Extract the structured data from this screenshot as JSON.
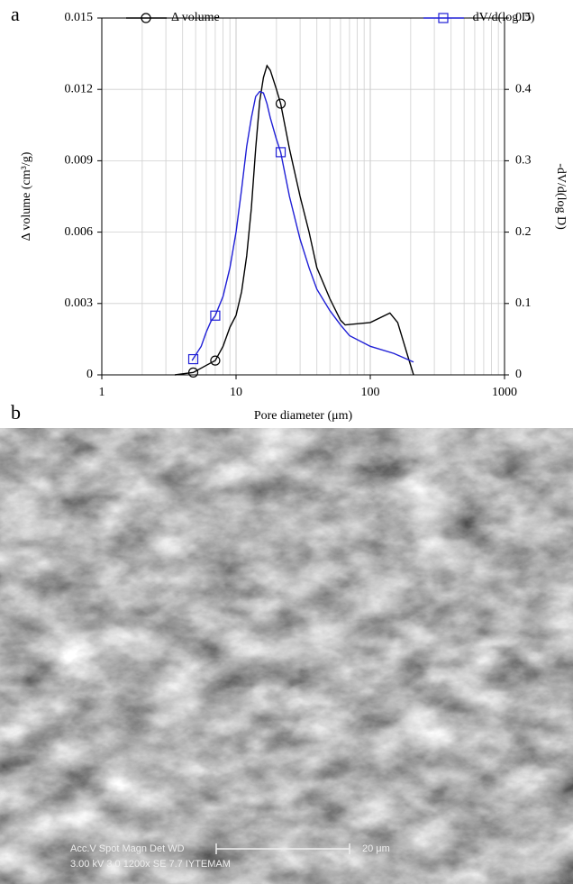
{
  "panel_labels": [
    "a",
    "b"
  ],
  "chart_data": {
    "type": "line",
    "xlabel": "Pore diameter (μm)",
    "ylabel": "Δ volume (cm³/g)",
    "y2label": "-dV/d(log D)",
    "xlog": true,
    "xlim": [
      1,
      1000
    ],
    "xticks": [
      1,
      10,
      100,
      1000
    ],
    "x_minor_ticks": [
      2,
      3,
      4,
      5,
      6,
      7,
      8,
      9,
      20,
      30,
      40,
      50,
      60,
      70,
      80,
      90,
      200,
      300,
      400,
      500,
      600,
      700,
      800,
      900
    ],
    "ylim": [
      0,
      0.015
    ],
    "yticks": [
      0,
      0.003,
      0.006,
      0.009,
      0.012,
      0.015
    ],
    "y2lim": [
      0,
      0.5
    ],
    "y2ticks": [
      0,
      0.1,
      0.2,
      0.3,
      0.4,
      0.5
    ],
    "grid": true,
    "series": [
      {
        "name": "Δ volume",
        "color": "#000000",
        "marker": "circle",
        "x": [
          3.5,
          4.8,
          6,
          7,
          8,
          9,
          10,
          11,
          12,
          13,
          14,
          15,
          16,
          17,
          18,
          20,
          21.5,
          25,
          30,
          35,
          40,
          50,
          60,
          65,
          100,
          140,
          160,
          190,
          210
        ],
        "values": [
          0,
          0.0001,
          0.0004,
          0.0006,
          0.0012,
          0.002,
          0.0025,
          0.0035,
          0.005,
          0.007,
          0.0095,
          0.0115,
          0.0125,
          0.013,
          0.0128,
          0.012,
          0.0114,
          0.0095,
          0.0075,
          0.006,
          0.0045,
          0.0032,
          0.0023,
          0.0021,
          0.0022,
          0.0026,
          0.0022,
          0.0008,
          0
        ],
        "markers": {
          "x": [
            4.8,
            7,
            21.5
          ],
          "values": [
            0.0001,
            0.0006,
            0.0114
          ]
        }
      },
      {
        "name": "-dV/d(log D)",
        "color": "#1f1fd6",
        "marker": "square",
        "axis": "y2",
        "x": [
          4.7,
          5.5,
          6,
          6.5,
          7,
          8,
          9,
          10,
          11,
          12,
          13,
          14,
          15,
          16,
          17,
          18,
          20,
          21.5,
          25,
          30,
          35,
          40,
          50,
          60,
          70,
          100,
          150,
          210
        ],
        "values": [
          0.02,
          0.04,
          0.06,
          0.075,
          0.083,
          0.11,
          0.15,
          0.2,
          0.26,
          0.32,
          0.36,
          0.39,
          0.397,
          0.395,
          0.38,
          0.36,
          0.33,
          0.312,
          0.25,
          0.19,
          0.15,
          0.12,
          0.09,
          0.07,
          0.055,
          0.04,
          0.03,
          0.018
        ],
        "markers": {
          "x": [
            4.8,
            7,
            21.5
          ],
          "values": [
            0.022,
            0.083,
            0.312
          ]
        }
      }
    ]
  },
  "micrograph": {
    "caption_top": "Acc.V   Spot Magn    Det   WD",
    "caption_bottom": "3.00 kV 3.0    1200x    SE    7.7     IYTEMAM",
    "scale_label": "20 μm"
  }
}
